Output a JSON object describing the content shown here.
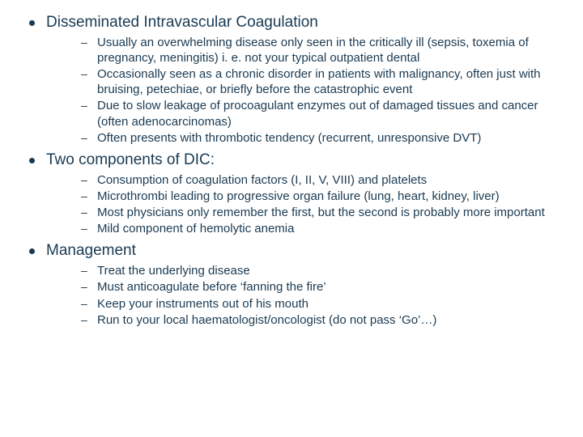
{
  "text_color": "#1a3a52",
  "background_color": "#ffffff",
  "sections": [
    {
      "title": "Disseminated Intravascular Coagulation",
      "items": [
        "Usually an overwhelming disease only seen in the critically ill (sepsis, toxemia of pregnancy, meningitis) i. e. not your typical outpatient dental",
        "Occasionally seen as a chronic disorder in patients with malignancy, often just with bruising, petechiae, or briefly before the catastrophic event",
        "Due to slow leakage of procoagulant enzymes out of damaged tissues and cancer (often adenocarcinomas)",
        "Often presents with thrombotic tendency (recurrent, unresponsive DVT)"
      ]
    },
    {
      "title": "Two components of DIC:",
      "items": [
        "Consumption of coagulation factors (I, II, V, VIII) and platelets",
        "Microthrombi leading to progressive organ failure (lung, heart, kidney, liver)",
        "Most physicians only remember the first, but the second is probably more important",
        "Mild component of hemolytic anemia"
      ]
    },
    {
      "title": "Management",
      "items": [
        "Treat the underlying disease",
        "Must anticoagulate before ‘fanning the fire’",
        "Keep your instruments out of his mouth",
        "Run to your local haematologist/oncologist (do not pass ‘Go’…)"
      ]
    }
  ]
}
